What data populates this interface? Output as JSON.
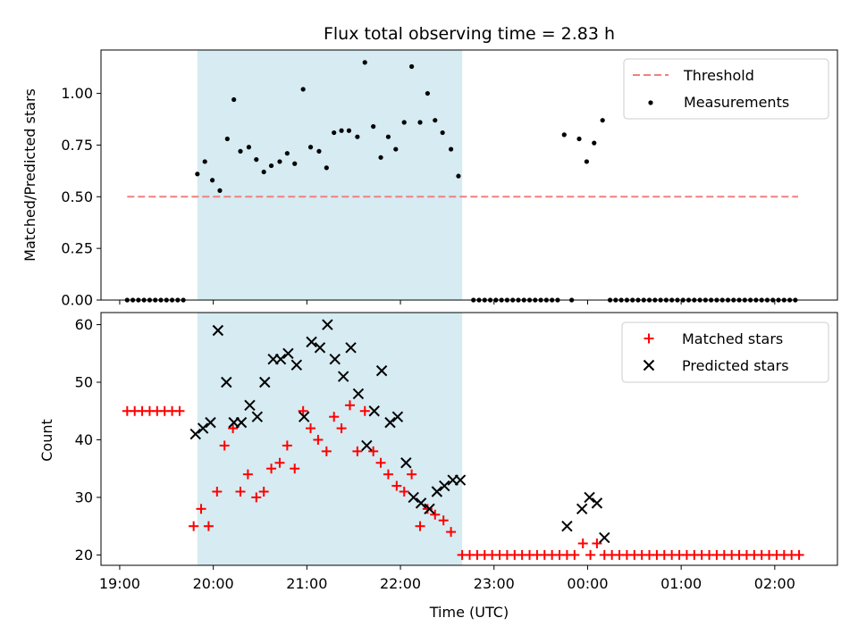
{
  "title": "Flux total observing time = 2.83 h",
  "xlabel": "Time (UTC)",
  "colors": {
    "threshold": "#f08080",
    "measurement": "#000000",
    "matched": "#ff0000",
    "predicted": "#000000",
    "shade": "#add8e6"
  },
  "x_tick_labels": [
    "19:00",
    "20:00",
    "21:00",
    "22:00",
    "23:00",
    "00:00",
    "01:00",
    "02:00"
  ],
  "chart_data": [
    {
      "type": "scatter",
      "ylabel": "Matched/Predicted stars",
      "x_unit": "hours since 19:00 UTC on the plotted night",
      "xlim": [
        18.8,
        26.67
      ],
      "ylim": [
        0,
        1.21
      ],
      "x_ticks": [
        19,
        20,
        21,
        22,
        23,
        24,
        25,
        26
      ],
      "y_ticks": [
        0,
        0.25,
        0.5,
        0.75,
        1.0
      ],
      "y_tick_labels": [
        "0.00",
        "0.25",
        "0.50",
        "0.75",
        "1.00"
      ],
      "shaded_span": [
        19.83,
        22.66
      ],
      "legend_placement": "top-right",
      "threshold": {
        "name": "Threshold",
        "x": [
          19.08,
          26.25
        ],
        "y": 0.5
      },
      "series": [
        {
          "name": "Measurements",
          "points": [
            [
              19.08,
              0
            ],
            [
              19.14,
              0
            ],
            [
              19.2,
              0
            ],
            [
              19.26,
              0
            ],
            [
              19.32,
              0
            ],
            [
              19.38,
              0
            ],
            [
              19.44,
              0
            ],
            [
              19.5,
              0
            ],
            [
              19.56,
              0
            ],
            [
              19.62,
              0
            ],
            [
              19.68,
              0
            ],
            [
              19.83,
              0.61
            ],
            [
              19.91,
              0.67
            ],
            [
              19.99,
              0.58
            ],
            [
              20.07,
              0.53
            ],
            [
              20.15,
              0.78
            ],
            [
              20.22,
              0.97
            ],
            [
              20.29,
              0.72
            ],
            [
              20.38,
              0.74
            ],
            [
              20.46,
              0.68
            ],
            [
              20.54,
              0.62
            ],
            [
              20.62,
              0.65
            ],
            [
              20.71,
              0.67
            ],
            [
              20.79,
              0.71
            ],
            [
              20.87,
              0.66
            ],
            [
              20.96,
              1.02
            ],
            [
              21.04,
              0.74
            ],
            [
              21.13,
              0.72
            ],
            [
              21.21,
              0.64
            ],
            [
              21.29,
              0.81
            ],
            [
              21.37,
              0.82
            ],
            [
              21.45,
              0.82
            ],
            [
              21.54,
              0.79
            ],
            [
              21.62,
              1.15
            ],
            [
              21.71,
              0.84
            ],
            [
              21.79,
              0.69
            ],
            [
              21.87,
              0.79
            ],
            [
              21.95,
              0.73
            ],
            [
              22.04,
              0.86
            ],
            [
              22.12,
              1.13
            ],
            [
              22.21,
              0.86
            ],
            [
              22.29,
              1.0
            ],
            [
              22.37,
              0.87
            ],
            [
              22.45,
              0.81
            ],
            [
              22.54,
              0.73
            ],
            [
              22.62,
              0.6
            ],
            [
              22.78,
              0
            ],
            [
              22.84,
              0
            ],
            [
              22.9,
              0
            ],
            [
              22.96,
              0
            ],
            [
              23.02,
              0
            ],
            [
              23.08,
              0
            ],
            [
              23.14,
              0
            ],
            [
              23.2,
              0
            ],
            [
              23.26,
              0
            ],
            [
              23.32,
              0
            ],
            [
              23.38,
              0
            ],
            [
              23.44,
              0
            ],
            [
              23.5,
              0
            ],
            [
              23.56,
              0
            ],
            [
              23.62,
              0
            ],
            [
              23.68,
              0
            ],
            [
              23.75,
              0.8
            ],
            [
              23.83,
              0
            ],
            [
              23.91,
              0.78
            ],
            [
              23.99,
              0.67
            ],
            [
              24.07,
              0.76
            ],
            [
              24.16,
              0.87
            ],
            [
              24.24,
              0
            ],
            [
              24.3,
              0
            ],
            [
              24.36,
              0
            ],
            [
              24.42,
              0
            ],
            [
              24.48,
              0
            ],
            [
              24.54,
              0
            ],
            [
              24.6,
              0
            ],
            [
              24.66,
              0
            ],
            [
              24.72,
              0
            ],
            [
              24.78,
              0
            ],
            [
              24.84,
              0
            ],
            [
              24.9,
              0
            ],
            [
              24.96,
              0
            ],
            [
              25.02,
              0
            ],
            [
              25.08,
              0
            ],
            [
              25.14,
              0
            ],
            [
              25.2,
              0
            ],
            [
              25.26,
              0
            ],
            [
              25.32,
              0
            ],
            [
              25.38,
              0
            ],
            [
              25.44,
              0
            ],
            [
              25.5,
              0
            ],
            [
              25.56,
              0
            ],
            [
              25.62,
              0
            ],
            [
              25.68,
              0
            ],
            [
              25.74,
              0
            ],
            [
              25.8,
              0
            ],
            [
              25.86,
              0
            ],
            [
              25.92,
              0
            ],
            [
              25.98,
              0
            ],
            [
              26.04,
              0
            ],
            [
              26.1,
              0
            ],
            [
              26.16,
              0
            ],
            [
              26.22,
              0
            ]
          ]
        }
      ]
    },
    {
      "type": "scatter",
      "ylabel": "Count",
      "x_unit": "hours since 19:00 UTC on the plotted night",
      "xlim": [
        18.8,
        26.67
      ],
      "ylim": [
        18.2,
        62.1
      ],
      "x_ticks": [
        19,
        20,
        21,
        22,
        23,
        24,
        25,
        26
      ],
      "y_ticks": [
        20,
        30,
        40,
        50,
        60
      ],
      "y_tick_labels": [
        "20",
        "30",
        "40",
        "50",
        "60"
      ],
      "shaded_span": [
        19.83,
        22.66
      ],
      "legend_placement": "top-right",
      "series": [
        {
          "name": "Matched stars",
          "marker": "plus",
          "points": [
            [
              19.08,
              45
            ],
            [
              19.16,
              45
            ],
            [
              19.24,
              45
            ],
            [
              19.32,
              45
            ],
            [
              19.4,
              45
            ],
            [
              19.48,
              45
            ],
            [
              19.56,
              45
            ],
            [
              19.64,
              45
            ],
            [
              19.79,
              25
            ],
            [
              19.87,
              28
            ],
            [
              19.95,
              25
            ],
            [
              20.04,
              31
            ],
            [
              20.12,
              39
            ],
            [
              20.21,
              42
            ],
            [
              20.29,
              31
            ],
            [
              20.37,
              34
            ],
            [
              20.46,
              30
            ],
            [
              20.54,
              31
            ],
            [
              20.62,
              35
            ],
            [
              20.71,
              36
            ],
            [
              20.79,
              39
            ],
            [
              20.87,
              35
            ],
            [
              20.96,
              45
            ],
            [
              21.04,
              42
            ],
            [
              21.12,
              40
            ],
            [
              21.21,
              38
            ],
            [
              21.29,
              44
            ],
            [
              21.37,
              42
            ],
            [
              21.46,
              46
            ],
            [
              21.54,
              38
            ],
            [
              21.62,
              45
            ],
            [
              21.71,
              38
            ],
            [
              21.79,
              36
            ],
            [
              21.87,
              34
            ],
            [
              21.96,
              32
            ],
            [
              22.04,
              31
            ],
            [
              22.12,
              34
            ],
            [
              22.21,
              25
            ],
            [
              22.29,
              28
            ],
            [
              22.37,
              27
            ],
            [
              22.46,
              26
            ],
            [
              22.54,
              24
            ],
            [
              22.66,
              20
            ],
            [
              22.74,
              20
            ],
            [
              22.82,
              20
            ],
            [
              22.9,
              20
            ],
            [
              22.98,
              20
            ],
            [
              23.06,
              20
            ],
            [
              23.14,
              20
            ],
            [
              23.22,
              20
            ],
            [
              23.3,
              20
            ],
            [
              23.38,
              20
            ],
            [
              23.46,
              20
            ],
            [
              23.54,
              20
            ],
            [
              23.62,
              20
            ],
            [
              23.7,
              20
            ],
            [
              23.78,
              20
            ],
            [
              23.86,
              20
            ],
            [
              23.95,
              22
            ],
            [
              24.03,
              20
            ],
            [
              24.1,
              22
            ],
            [
              24.18,
              20
            ],
            [
              24.26,
              20
            ],
            [
              24.34,
              20
            ],
            [
              24.42,
              20
            ],
            [
              24.5,
              20
            ],
            [
              24.58,
              20
            ],
            [
              24.66,
              20
            ],
            [
              24.74,
              20
            ],
            [
              24.82,
              20
            ],
            [
              24.9,
              20
            ],
            [
              24.98,
              20
            ],
            [
              25.06,
              20
            ],
            [
              25.14,
              20
            ],
            [
              25.22,
              20
            ],
            [
              25.3,
              20
            ],
            [
              25.38,
              20
            ],
            [
              25.46,
              20
            ],
            [
              25.54,
              20
            ],
            [
              25.62,
              20
            ],
            [
              25.7,
              20
            ],
            [
              25.78,
              20
            ],
            [
              25.86,
              20
            ],
            [
              25.94,
              20
            ],
            [
              26.02,
              20
            ],
            [
              26.1,
              20
            ],
            [
              26.18,
              20
            ],
            [
              26.26,
              20
            ]
          ]
        },
        {
          "name": "Predicted stars",
          "marker": "x",
          "points": [
            [
              19.81,
              41
            ],
            [
              19.89,
              42
            ],
            [
              19.97,
              43
            ],
            [
              20.05,
              59
            ],
            [
              20.14,
              50
            ],
            [
              20.22,
              43
            ],
            [
              20.3,
              43
            ],
            [
              20.39,
              46
            ],
            [
              20.47,
              44
            ],
            [
              20.55,
              50
            ],
            [
              20.64,
              54
            ],
            [
              20.72,
              54
            ],
            [
              20.8,
              55
            ],
            [
              20.89,
              53
            ],
            [
              20.97,
              44
            ],
            [
              21.05,
              57
            ],
            [
              21.14,
              56
            ],
            [
              21.22,
              60
            ],
            [
              21.3,
              54
            ],
            [
              21.39,
              51
            ],
            [
              21.47,
              56
            ],
            [
              21.55,
              48
            ],
            [
              21.64,
              39
            ],
            [
              21.72,
              45
            ],
            [
              21.8,
              52
            ],
            [
              21.89,
              43
            ],
            [
              21.97,
              44
            ],
            [
              22.06,
              36
            ],
            [
              22.14,
              30
            ],
            [
              22.22,
              29
            ],
            [
              22.31,
              28
            ],
            [
              22.39,
              31
            ],
            [
              22.47,
              32
            ],
            [
              22.56,
              33
            ],
            [
              22.64,
              33
            ],
            [
              23.78,
              25
            ],
            [
              23.94,
              28
            ],
            [
              24.02,
              30
            ],
            [
              24.1,
              29
            ],
            [
              24.18,
              23
            ]
          ]
        }
      ]
    }
  ]
}
